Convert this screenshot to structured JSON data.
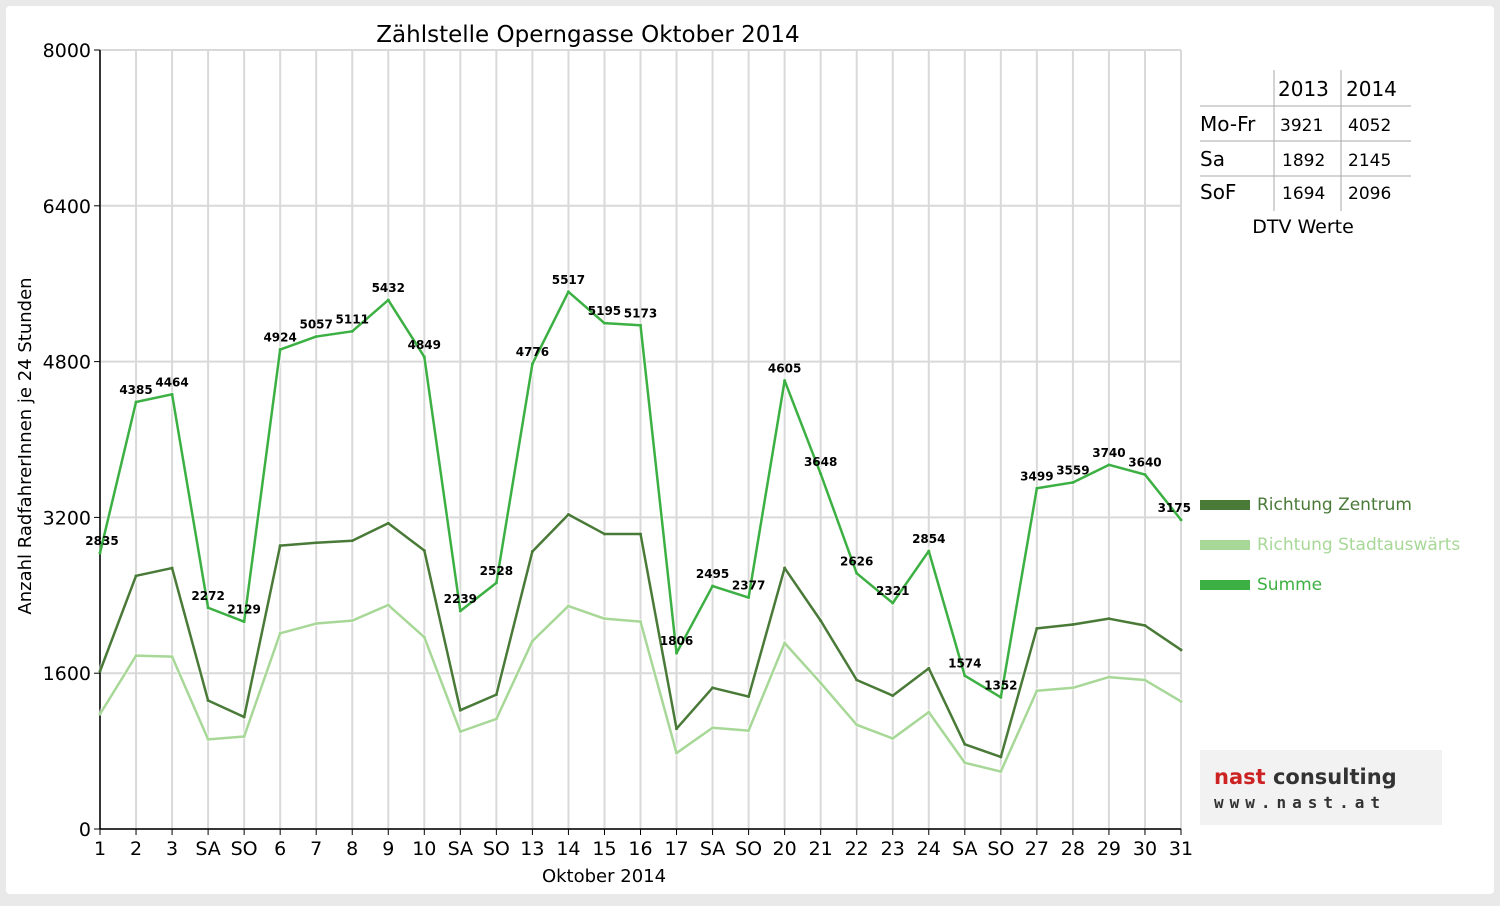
{
  "colors": {
    "zentrum": "#4a7a38",
    "stadtauswaerts": "#a8d898",
    "summe": "#3cb043",
    "weekend_label": "#ff0000",
    "grid": "#d9d9d9"
  },
  "chart_data": {
    "type": "line",
    "title": "Zählstelle Operngasse Oktober 2014",
    "xlabel": "Oktober 2014",
    "ylabel": "Anzahl RadfahrerInnen je 24 Stunden",
    "ylim": [
      0,
      8000
    ],
    "yticks": [
      "0",
      "1600",
      "3200",
      "4800",
      "6400",
      "8000"
    ],
    "grid": true,
    "categories": [
      "1",
      "2",
      "3",
      "SA",
      "SO",
      "6",
      "7",
      "8",
      "9",
      "10",
      "SA",
      "SO",
      "13",
      "14",
      "15",
      "16",
      "17",
      "SA",
      "SO",
      "20",
      "21",
      "22",
      "23",
      "24",
      "SA",
      "SO",
      "27",
      "28",
      "29",
      "30",
      "31"
    ],
    "weekend_markers": [
      "SO"
    ],
    "series": [
      {
        "name": "Richtung Zentrum",
        "values": [
          1620,
          2600,
          2680,
          1320,
          1150,
          2910,
          2940,
          2960,
          3140,
          2860,
          1220,
          1380,
          2850,
          3230,
          3030,
          3030,
          1030,
          1450,
          1360,
          2680,
          2140,
          1530,
          1370,
          1650,
          870,
          740,
          2060,
          2100,
          2160,
          2090,
          1840
        ]
      },
      {
        "name": "Richtung Stadtauswärts",
        "values": [
          1180,
          1780,
          1770,
          920,
          950,
          2010,
          2110,
          2140,
          2300,
          1970,
          1000,
          1130,
          1930,
          2290,
          2160,
          2130,
          780,
          1040,
          1010,
          1910,
          1500,
          1070,
          930,
          1200,
          680,
          590,
          1420,
          1450,
          1560,
          1530,
          1310
        ]
      },
      {
        "name": "Summe",
        "values": [
          2835,
          4385,
          4464,
          2272,
          2129,
          4924,
          5057,
          5111,
          5432,
          4849,
          2239,
          2528,
          4776,
          5517,
          5195,
          5173,
          1806,
          2495,
          2377,
          4605,
          3648,
          2626,
          2321,
          2854,
          1574,
          1352,
          3499,
          3559,
          3740,
          3640,
          3175
        ],
        "labels": [
          "2835",
          "4385",
          "4464",
          "2272",
          "2129",
          "4924",
          "5057",
          "5111",
          "5432",
          "4849",
          "2239",
          "2528",
          "4776",
          "5517",
          "5195",
          "5173",
          "1806",
          "2495",
          "2377",
          "4605",
          "3648",
          "2626",
          "2321",
          "2854",
          "1574",
          "1352",
          "3499",
          "3559",
          "3740",
          "3640",
          "3175"
        ]
      }
    ],
    "legend_position": "right"
  },
  "dtv": {
    "columns": [
      "2013",
      "2014"
    ],
    "rows": [
      {
        "label": "Mo-Fr",
        "v2013": "3921",
        "v2014": "4052"
      },
      {
        "label": "Sa",
        "v2013": "1892",
        "v2014": "2145"
      },
      {
        "label": "SoF",
        "v2013": "1694",
        "v2014": "2096"
      }
    ],
    "caption": "DTV Werte"
  },
  "logo": {
    "name_part1": "nast",
    "name_part2": " consulting",
    "url": "www.nast.at"
  }
}
